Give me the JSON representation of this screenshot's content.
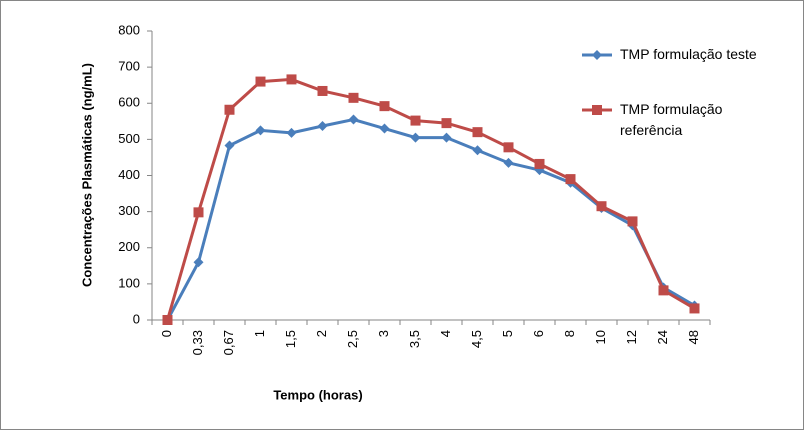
{
  "chart_data": {
    "type": "line",
    "y_label": "Concentrações Plasmáticas (ng/mL)",
    "x_label": "Tempo (horas)",
    "categories": [
      "0",
      "0,33",
      "0,67",
      "1",
      "1,5",
      "2",
      "2,5",
      "3",
      "3,5",
      "4",
      "4,5",
      "5",
      "6",
      "8",
      "10",
      "12",
      "24",
      "48"
    ],
    "series": [
      {
        "name": "TMP formulação teste",
        "color": "#4a7ebb",
        "marker": "diamond",
        "values": [
          0,
          160,
          483,
          525,
          518,
          537,
          555,
          530,
          505,
          505,
          470,
          435,
          415,
          380,
          310,
          262,
          90,
          40
        ]
      },
      {
        "name": "TMP formulação referência",
        "color": "#be4b48",
        "marker": "square",
        "values": [
          0,
          298,
          582,
          660,
          666,
          634,
          615,
          592,
          552,
          545,
          520,
          478,
          432,
          390,
          315,
          273,
          82,
          32
        ]
      }
    ],
    "ylim": [
      0,
      800
    ],
    "yticks": [
      0,
      100,
      200,
      300,
      400,
      500,
      600,
      700,
      800
    ],
    "grid": false,
    "legend": "right"
  }
}
